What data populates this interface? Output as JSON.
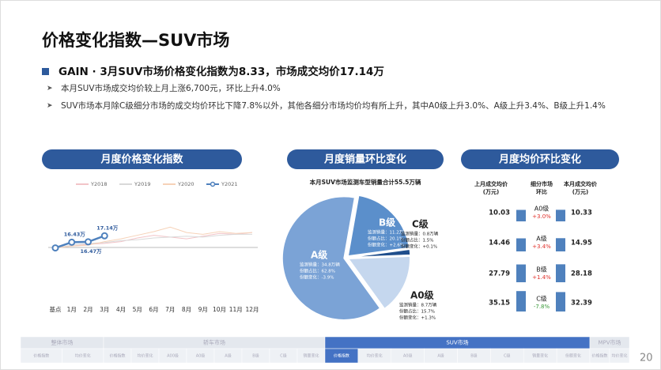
{
  "title": "价格变化指数—SUV市场",
  "headline": "GAIN · 3月SUV市场价格变化指数为8.33，市场成交均价17.14万",
  "bullets": [
    "本月SUV市场成交均价较上月上涨6,700元，环比上升4.0%",
    "SUV市场本月除C级细分市场的成交均价环比下降7.8%以外，其他各细分市场均价均有所上升，其中A0级上升3.0%、A级上升3.4%、B级上升1.4%"
  ],
  "sections": [
    "月度价格变化指数",
    "月度销量环比变化",
    "月度均价环比变化"
  ],
  "chart_data": [
    {
      "type": "line",
      "categories": [
        "基点",
        "1月",
        "2月",
        "3月",
        "4月",
        "5月",
        "6月",
        "7月",
        "8月",
        "9月",
        "10月",
        "11月",
        "12月"
      ],
      "ylim": [
        13.4,
        20.4
      ],
      "series": [
        {
          "name": "Y2018",
          "color": "#f2c4c8",
          "values": [
            15.8,
            16.0,
            16.2,
            16.3,
            16.5,
            16.9,
            17.2,
            17.0,
            16.8,
            17.1,
            17.4,
            17.3,
            17.5
          ]
        },
        {
          "name": "Y2019",
          "color": "#d9d9d9",
          "values": [
            15.8,
            16.1,
            16.3,
            16.4,
            16.6,
            16.7,
            16.9,
            17.0,
            17.1,
            17.0,
            17.2,
            17.3,
            17.3
          ]
        },
        {
          "name": "Y2020",
          "color": "#f6d2b8",
          "values": [
            15.8,
            16.0,
            16.1,
            16.5,
            16.8,
            17.2,
            17.6,
            18.1,
            17.5,
            17.3,
            17.6,
            17.4,
            17.5
          ]
        },
        {
          "name": "Y2021",
          "color": "#4f81bd",
          "values": [
            15.8,
            16.43,
            16.47,
            17.14,
            null,
            null,
            null,
            null,
            null,
            null,
            null,
            null,
            null
          ],
          "value_labels": [
            null,
            "16.43万",
            "16.47万",
            "17.14万",
            null,
            null,
            null,
            null,
            null,
            null,
            null,
            null,
            null
          ]
        }
      ]
    },
    {
      "type": "pie",
      "title": "本月SUV市场监测车型销量合计55.5万辆",
      "categories": [
        "B级",
        "C级",
        "A0级",
        "A级"
      ],
      "values": [
        20.1,
        1.5,
        15.7,
        62.8
      ],
      "colors": [
        "#5b8fcb",
        "#1f4e8c",
        "#c5d7ee",
        "#7ba3d6"
      ],
      "details": [
        [
          "监测销量：11.2万辆",
          "份额占比：20.1%",
          "份额变化：+2.6%"
        ],
        [
          "监测销量：0.8万辆",
          "份额占比：1.5%",
          "份额变化：+0.1%"
        ],
        [
          "监测销量：8.7万辆",
          "份额占比：15.7%",
          "份额变化：+1.3%"
        ],
        [
          "监测销量：34.8万辆",
          "份额占比：62.8%",
          "份额变化：-3.9%"
        ]
      ]
    }
  ],
  "table": {
    "headers": [
      [
        "上月成交均价",
        "(万元)"
      ],
      [
        "细分市场",
        "环比"
      ],
      [
        "本月成交均价",
        "(万元)"
      ]
    ],
    "rows": [
      [
        10.03,
        "A0级",
        "+3.0%",
        10.33
      ],
      [
        14.46,
        "A级",
        "+3.4%",
        14.95
      ],
      [
        27.79,
        "B级",
        "+1.4%",
        28.18
      ],
      [
        35.15,
        "C级",
        "-7.8%",
        32.39
      ]
    ]
  },
  "nav": [
    {
      "label": "整体市场",
      "subtabs": [
        "价格指数",
        "均价变化"
      ]
    },
    {
      "label": "轿车市场",
      "subtabs": [
        "价格指数",
        "均价变化",
        "A00级",
        "A0级",
        "A级",
        "B级",
        "C级",
        "销量变化"
      ]
    },
    {
      "label": "SUV市场",
      "subtabs": [
        "价格指数",
        "均价变化",
        "A0级",
        "A级",
        "B级",
        "C级",
        "销量变化",
        "份额变化"
      ]
    },
    {
      "label": "MPV市场",
      "subtabs": [
        "价格指数",
        "均价变化"
      ]
    }
  ],
  "page_number": "20"
}
